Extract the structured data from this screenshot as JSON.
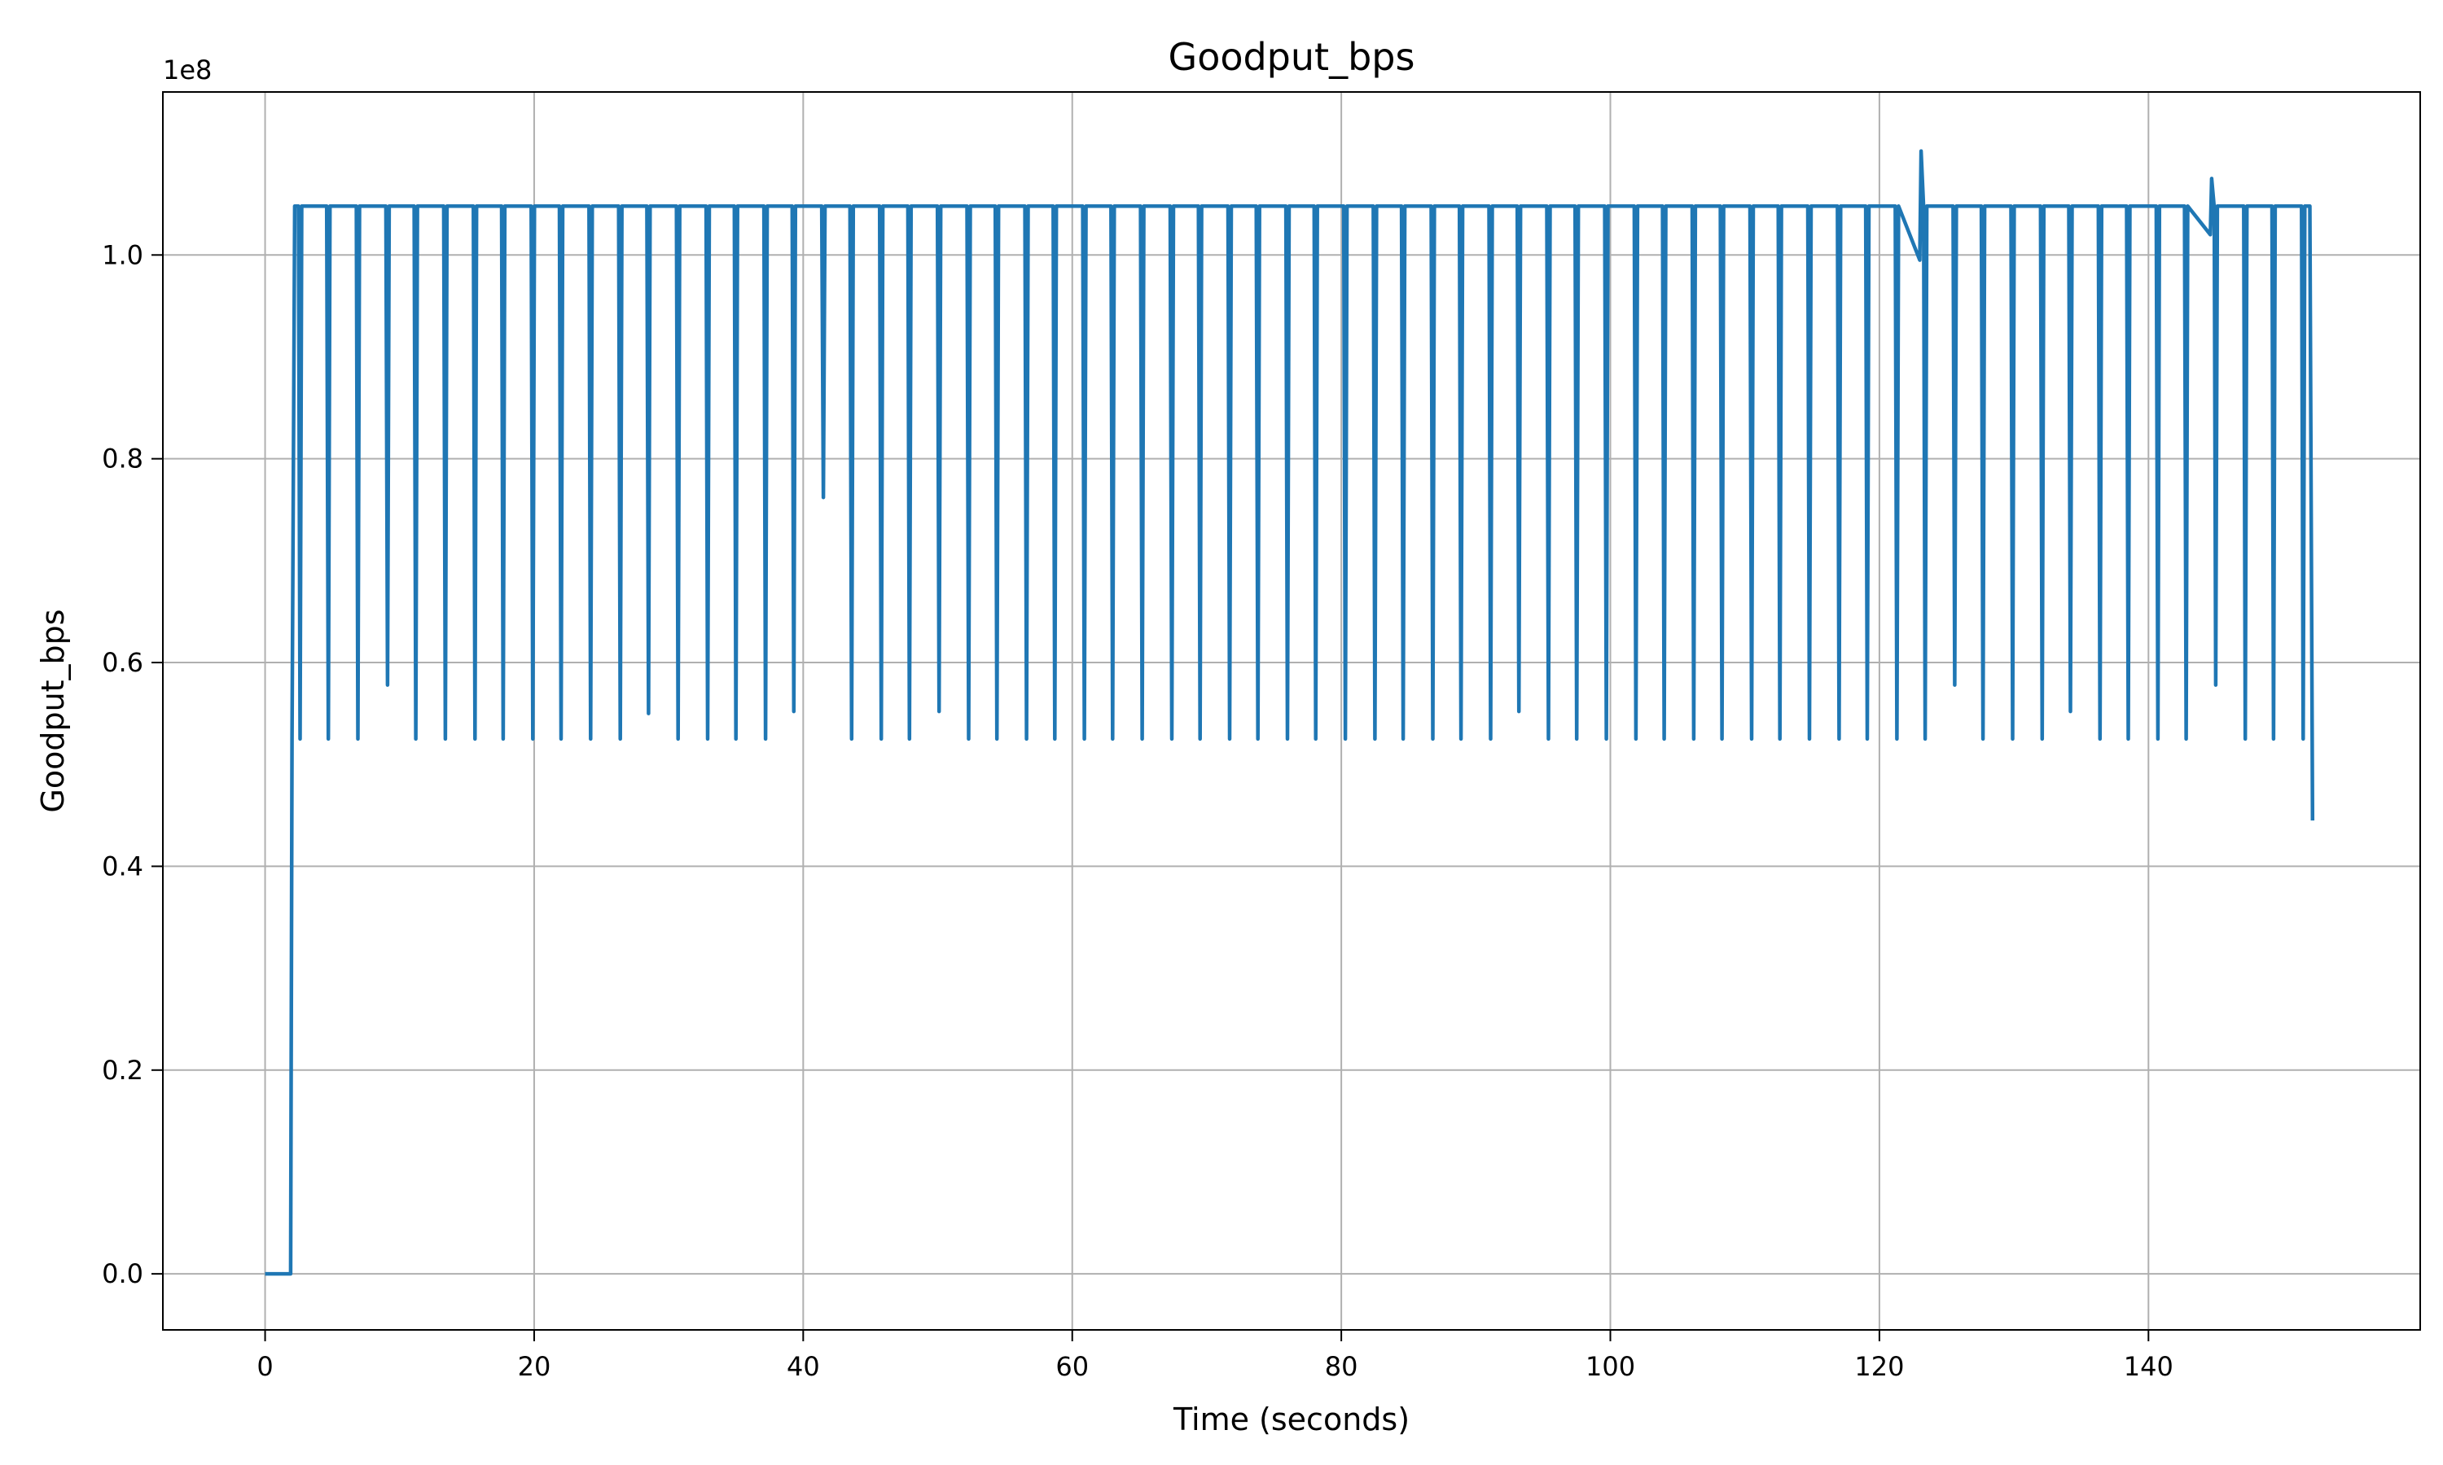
{
  "chart_data": {
    "type": "line",
    "title": "Goodput_bps",
    "xlabel": "Time (seconds)",
    "ylabel": "Goodput_bps",
    "y_offset_label": "1e8",
    "xlim": [
      -7.6,
      160.2
    ],
    "ylim": [
      -0.055,
      1.16
    ],
    "y_scale_note": "values in units of 1e8 bps",
    "grid": true,
    "legend": "none",
    "line_color": "#1f77b4",
    "x_ticks": [
      0,
      20,
      40,
      60,
      80,
      100,
      120,
      140
    ],
    "x_tick_labels": [
      "0",
      "20",
      "40",
      "60",
      "80",
      "100",
      "120",
      "140"
    ],
    "y_ticks": [
      0.0,
      0.2,
      0.4,
      0.6,
      0.8,
      1.0
    ],
    "y_tick_labels": [
      "0.0",
      "0.2",
      "0.4",
      "0.6",
      "0.8",
      "1.0"
    ],
    "series": [
      {
        "high": 1.048,
        "start": [
          [
            0,
            0
          ],
          [
            1.9,
            0
          ],
          [
            2.0,
            0.525
          ],
          [
            2.2,
            1.048
          ]
        ],
        "dips": [
          [
            2.6,
            0.525
          ],
          [
            4.7,
            0.525
          ],
          [
            6.9,
            0.525
          ],
          [
            9.1,
            0.578
          ],
          [
            11.2,
            0.525
          ],
          [
            13.4,
            0.525
          ],
          [
            15.6,
            0.525
          ],
          [
            17.7,
            0.525
          ],
          [
            19.9,
            0.525
          ],
          [
            22.0,
            0.525
          ],
          [
            24.2,
            0.525
          ],
          [
            26.4,
            0.525
          ],
          [
            28.5,
            0.55
          ],
          [
            30.7,
            0.525
          ],
          [
            32.9,
            0.525
          ],
          [
            35.0,
            0.525
          ],
          [
            37.2,
            0.525
          ],
          [
            39.3,
            0.552
          ],
          [
            41.5,
            0.762
          ],
          [
            43.6,
            0.525
          ],
          [
            45.8,
            0.525
          ],
          [
            47.9,
            0.525
          ],
          [
            50.1,
            0.552
          ],
          [
            52.3,
            0.525
          ],
          [
            54.4,
            0.525
          ],
          [
            56.6,
            0.525
          ],
          [
            58.7,
            0.525
          ],
          [
            60.9,
            0.525
          ],
          [
            63.0,
            0.525
          ],
          [
            65.2,
            0.525
          ],
          [
            67.4,
            0.525
          ],
          [
            69.5,
            0.525
          ],
          [
            71.7,
            0.525
          ],
          [
            73.8,
            0.525
          ],
          [
            76.0,
            0.525
          ],
          [
            78.1,
            0.525
          ],
          [
            80.3,
            0.525
          ],
          [
            82.5,
            0.525
          ],
          [
            84.6,
            0.525
          ],
          [
            86.8,
            0.525
          ],
          [
            88.9,
            0.525
          ],
          [
            91.1,
            0.525
          ],
          [
            93.2,
            0.552
          ],
          [
            95.4,
            0.525
          ],
          [
            97.5,
            0.525
          ],
          [
            99.7,
            0.525
          ],
          [
            101.9,
            0.525
          ],
          [
            104.0,
            0.525
          ],
          [
            106.2,
            0.525
          ],
          [
            108.3,
            0.525
          ],
          [
            110.5,
            0.525
          ],
          [
            112.6,
            0.525
          ],
          [
            114.8,
            0.525
          ],
          [
            117.0,
            0.525
          ],
          [
            119.1,
            0.525
          ],
          [
            121.3,
            0.525
          ],
          [
            123.4,
            0.525
          ],
          [
            125.6,
            0.578
          ],
          [
            127.7,
            0.525
          ],
          [
            129.9,
            0.525
          ],
          [
            132.1,
            0.525
          ],
          [
            134.2,
            0.552
          ],
          [
            136.4,
            0.525
          ],
          [
            138.5,
            0.525
          ],
          [
            140.7,
            0.525
          ],
          [
            142.8,
            0.525
          ],
          [
            145.0,
            0.578
          ],
          [
            147.2,
            0.525
          ],
          [
            149.3,
            0.525
          ],
          [
            151.5,
            0.525
          ]
        ],
        "spikes": [
          [
            123.0,
            0.995
          ],
          [
            123.1,
            1.102
          ],
          [
            123.3,
            0.995
          ],
          [
            144.6,
            1.02
          ],
          [
            144.7,
            1.075
          ],
          [
            144.9,
            1.02
          ]
        ],
        "end": [
          [
            152.0,
            1.048
          ],
          [
            152.2,
            0.445
          ]
        ]
      }
    ]
  }
}
